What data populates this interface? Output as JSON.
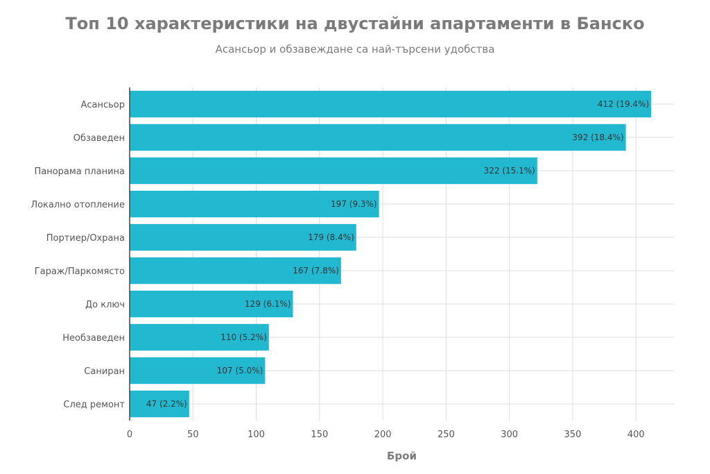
{
  "chart_data": {
    "type": "bar",
    "orientation": "horizontal",
    "title": "Топ 10 характеристики на двустайни апартаменти в Банско",
    "subtitle": "Асансьор и обзавеждане са най-търсени удобства",
    "xlabel": "Брой",
    "ylabel": "",
    "xlim": [
      0,
      430
    ],
    "xticks": [
      0,
      50,
      100,
      150,
      200,
      250,
      300,
      350,
      400
    ],
    "grid": true,
    "bar_color": "#22b8cf",
    "categories": [
      "Асансьор",
      "Обзаведен",
      "Панорама планина",
      "Локално отопление",
      "Портиер/Охрана",
      "Гараж/Паркомясто",
      "До ключ",
      "Необзаведен",
      "Саниран",
      "След ремонт"
    ],
    "values": [
      412,
      392,
      322,
      197,
      179,
      167,
      129,
      110,
      107,
      47
    ],
    "labels": [
      "412 (19.4%)",
      "392 (18.4%)",
      "322 (15.1%)",
      "197 (9.3%)",
      "179 (8.4%)",
      "167 (7.8%)",
      "129 (6.1%)",
      "110 (5.2%)",
      "107 (5.0%)",
      "47 (2.2%)"
    ]
  }
}
